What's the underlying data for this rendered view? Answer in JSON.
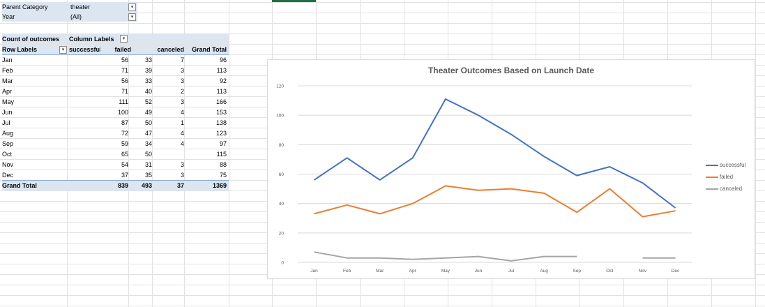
{
  "filters": {
    "parent_category_label": "Parent Category",
    "parent_category_value": "theater",
    "year_label": "Year",
    "year_value": "(All)"
  },
  "pivot": {
    "corner_label": "Count of outcomes",
    "column_labels": "Column Labels",
    "row_labels": "Row Labels",
    "headers": [
      "successful",
      "failed",
      "canceled",
      "Grand Total"
    ],
    "rows": [
      {
        "label": "Jan",
        "successful": "56",
        "failed": "33",
        "canceled": "7",
        "total": "96"
      },
      {
        "label": "Feb",
        "successful": "71",
        "failed": "39",
        "canceled": "3",
        "total": "113"
      },
      {
        "label": "Mar",
        "successful": "56",
        "failed": "33",
        "canceled": "3",
        "total": "92"
      },
      {
        "label": "Apr",
        "successful": "71",
        "failed": "40",
        "canceled": "2",
        "total": "113"
      },
      {
        "label": "May",
        "successful": "111",
        "failed": "52",
        "canceled": "3",
        "total": "166"
      },
      {
        "label": "Jun",
        "successful": "100",
        "failed": "49",
        "canceled": "4",
        "total": "153"
      },
      {
        "label": "Jul",
        "successful": "87",
        "failed": "50",
        "canceled": "1",
        "total": "138"
      },
      {
        "label": "Aug",
        "successful": "72",
        "failed": "47",
        "canceled": "4",
        "total": "123"
      },
      {
        "label": "Sep",
        "successful": "59",
        "failed": "34",
        "canceled": "4",
        "total": "97"
      },
      {
        "label": "Oct",
        "successful": "65",
        "failed": "50",
        "canceled": "",
        "total": "115"
      },
      {
        "label": "Nov",
        "successful": "54",
        "failed": "31",
        "canceled": "3",
        "total": "88"
      },
      {
        "label": "Dec",
        "successful": "37",
        "failed": "35",
        "canceled": "3",
        "total": "75"
      }
    ],
    "grand_total": {
      "label": "Grand Total",
      "successful": "839",
      "failed": "493",
      "canceled": "37",
      "total": "1369"
    }
  },
  "chart_data": {
    "type": "line",
    "title": "Theater Outcomes Based on Launch Date",
    "categories": [
      "Jan",
      "Feb",
      "Mar",
      "Apr",
      "May",
      "Jun",
      "Jul",
      "Aug",
      "Sep",
      "Oct",
      "Nov",
      "Dec"
    ],
    "ylim": [
      0,
      120
    ],
    "yticks": [
      0,
      20,
      40,
      60,
      80,
      100,
      120
    ],
    "grid": true,
    "legend": "right",
    "series": [
      {
        "name": "successful",
        "color": "#4472c4",
        "values": [
          56,
          71,
          56,
          71,
          111,
          100,
          87,
          72,
          59,
          65,
          54,
          37
        ]
      },
      {
        "name": "failed",
        "color": "#ed7d31",
        "values": [
          33,
          39,
          33,
          40,
          52,
          49,
          50,
          47,
          34,
          50,
          31,
          35
        ]
      },
      {
        "name": "canceled",
        "color": "#a5a5a5",
        "values": [
          7,
          3,
          3,
          2,
          3,
          4,
          1,
          4,
          4,
          null,
          3,
          3
        ]
      }
    ]
  },
  "icons": {
    "filter_applied": "filter-applied-icon",
    "dropdown": "dropdown-arrow-icon",
    "sort_filter": "sort-filter-icon"
  }
}
